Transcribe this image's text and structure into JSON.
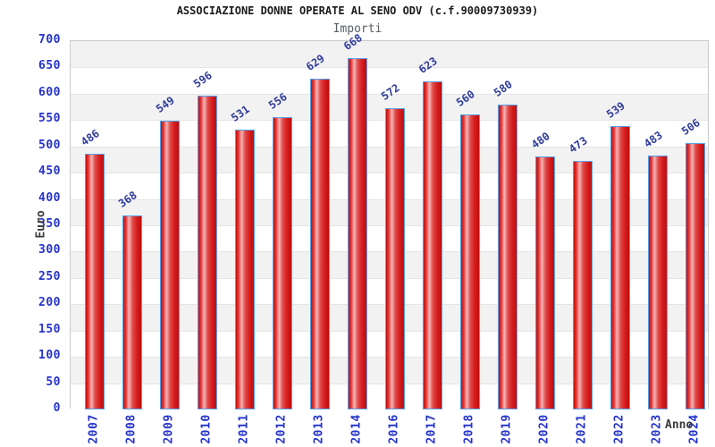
{
  "chart_data": {
    "type": "bar",
    "title": "ASSOCIAZIONE DONNE OPERATE AL SENO ODV (c.f.90009730939)",
    "subtitle": "Importi",
    "xlabel": "Anno",
    "ylabel": "Euro",
    "categories": [
      "2007",
      "2008",
      "2009",
      "2010",
      "2011",
      "2012",
      "2013",
      "2014",
      "2016",
      "2017",
      "2018",
      "2019",
      "2020",
      "2021",
      "2022",
      "2023",
      "2024"
    ],
    "values": [
      486,
      368,
      549,
      596,
      531,
      556,
      629,
      668,
      572,
      623,
      560,
      580,
      480,
      473,
      539,
      483,
      506
    ],
    "ylim": [
      0,
      700
    ],
    "ytick_step": 50,
    "grid": "alternating-horizontal-bands",
    "legend": "none",
    "colors": {
      "bar_fill": "#dd2222",
      "bar_highlight": "#f4b6b6",
      "bar_border": "#58a2ea",
      "axis_tick_text": "#2432cc",
      "value_label_text": "#2f3b9b",
      "band_gray": "#f2f2f2",
      "gridline": "#e4e4e4",
      "title_text": "#1a1a1a",
      "subtitle_text": "#595e62",
      "axis_name_text": "#3b3b3b"
    }
  }
}
